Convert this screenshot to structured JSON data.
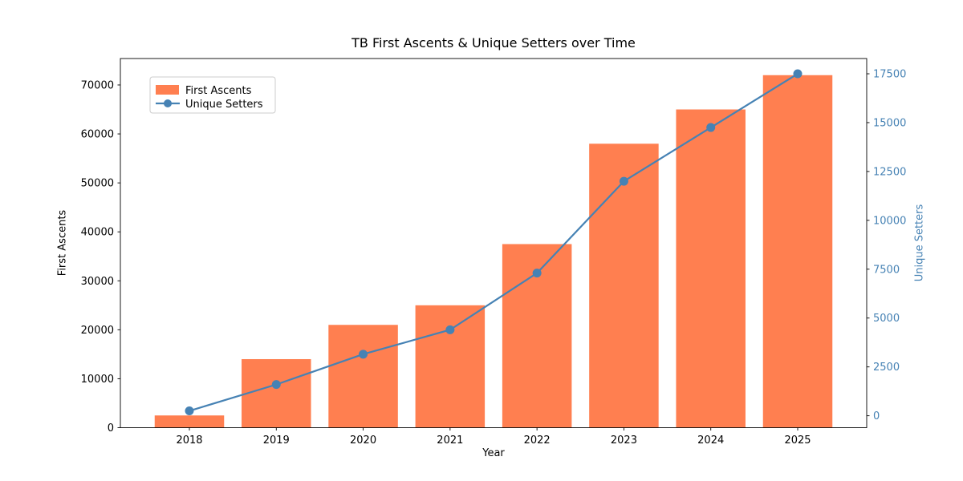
{
  "chart_data": {
    "type": "bar+line",
    "title": "TB First Ascents & Unique Setters over Time",
    "xlabel": "Year",
    "ylabel_left": "First Ascents",
    "ylabel_right": "Unique Setters",
    "categories": [
      "2018",
      "2019",
      "2020",
      "2021",
      "2022",
      "2023",
      "2024",
      "2025"
    ],
    "series": [
      {
        "name": "First Ascents",
        "type": "bar",
        "axis": "left",
        "color": "#FF7F50",
        "values": [
          2500,
          14000,
          21000,
          25000,
          37500,
          58000,
          65000,
          72000
        ]
      },
      {
        "name": "Unique Setters",
        "type": "line",
        "axis": "right",
        "color": "#4682B4",
        "marker": "circle",
        "values": [
          250,
          1600,
          3150,
          4400,
          7300,
          12000,
          14750,
          17500
        ]
      }
    ],
    "left_axis": {
      "ticks": [
        0,
        10000,
        20000,
        30000,
        40000,
        50000,
        60000,
        70000
      ],
      "range": [
        0,
        75400
      ],
      "label_color": "#000000"
    },
    "right_axis": {
      "ticks": [
        0,
        2500,
        5000,
        7500,
        10000,
        12500,
        15000,
        17500
      ],
      "range": [
        -610,
        18280
      ],
      "label_color": "#4682B4"
    },
    "legend": {
      "position": "upper left",
      "labels": [
        "First Ascents",
        "Unique Setters"
      ]
    },
    "grid": false,
    "colors": {
      "bar": "#FF7F50",
      "line": "#4682B4",
      "text": "#000000",
      "spine": "#000000",
      "legend_border": "#CCCCCC"
    }
  }
}
